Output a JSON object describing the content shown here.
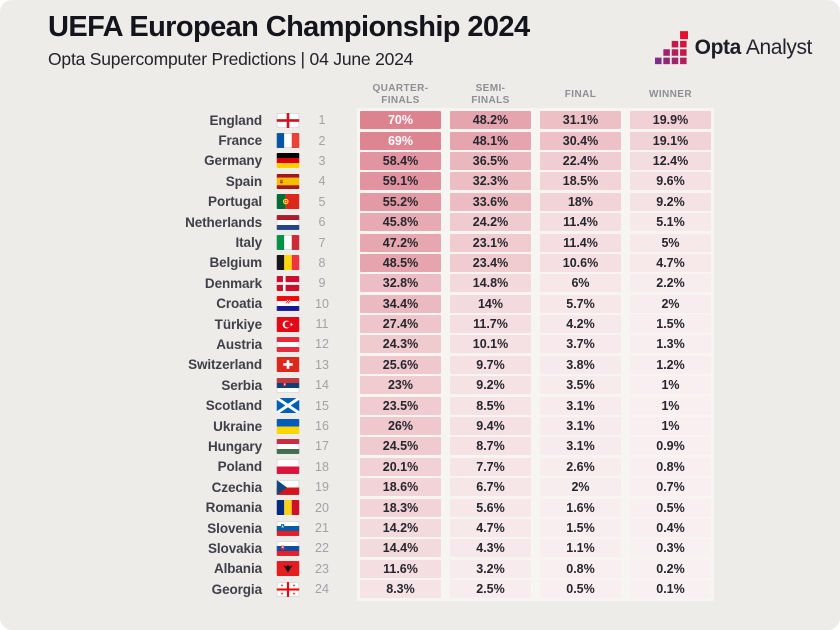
{
  "header": {
    "title": "UEFA European Championship 2024",
    "subtitle": "Opta Supercomputer Predictions | 04 June 2024",
    "logo": {
      "bold": "Opta",
      "light": "Analyst"
    }
  },
  "columns": [
    "QUARTER-\nFINALS",
    "SEMI-\nFINALS",
    "FINAL",
    "WINNER"
  ],
  "heat": {
    "min_color": "#f9f0f1",
    "max_color": "#dd8390",
    "max_value": 70,
    "white_text_threshold": 60,
    "dark_text": "#26262e",
    "light_text": "#ffffff"
  },
  "teams": [
    {
      "name": "England",
      "rank": 1,
      "flag": "england",
      "qf": "70%",
      "sf": "48.2%",
      "final": "31.1%",
      "winner": "19.9%"
    },
    {
      "name": "France",
      "rank": 2,
      "flag": "france",
      "qf": "69%",
      "sf": "48.1%",
      "final": "30.4%",
      "winner": "19.1%"
    },
    {
      "name": "Germany",
      "rank": 3,
      "flag": "germany",
      "qf": "58.4%",
      "sf": "36.5%",
      "final": "22.4%",
      "winner": "12.4%"
    },
    {
      "name": "Spain",
      "rank": 4,
      "flag": "spain",
      "qf": "59.1%",
      "sf": "32.3%",
      "final": "18.5%",
      "winner": "9.6%"
    },
    {
      "name": "Portugal",
      "rank": 5,
      "flag": "portugal",
      "qf": "55.2%",
      "sf": "33.6%",
      "final": "18%",
      "winner": "9.2%"
    },
    {
      "name": "Netherlands",
      "rank": 6,
      "flag": "netherlands",
      "qf": "45.8%",
      "sf": "24.2%",
      "final": "11.4%",
      "winner": "5.1%"
    },
    {
      "name": "Italy",
      "rank": 7,
      "flag": "italy",
      "qf": "47.2%",
      "sf": "23.1%",
      "final": "11.4%",
      "winner": "5%"
    },
    {
      "name": "Belgium",
      "rank": 8,
      "flag": "belgium",
      "qf": "48.5%",
      "sf": "23.4%",
      "final": "10.6%",
      "winner": "4.7%"
    },
    {
      "name": "Denmark",
      "rank": 9,
      "flag": "denmark",
      "qf": "32.8%",
      "sf": "14.8%",
      "final": "6%",
      "winner": "2.2%"
    },
    {
      "name": "Croatia",
      "rank": 10,
      "flag": "croatia",
      "qf": "34.4%",
      "sf": "14%",
      "final": "5.7%",
      "winner": "2%"
    },
    {
      "name": "Türkiye",
      "rank": 11,
      "flag": "turkiye",
      "qf": "27.4%",
      "sf": "11.7%",
      "final": "4.2%",
      "winner": "1.5%"
    },
    {
      "name": "Austria",
      "rank": 12,
      "flag": "austria",
      "qf": "24.3%",
      "sf": "10.1%",
      "final": "3.7%",
      "winner": "1.3%"
    },
    {
      "name": "Switzerland",
      "rank": 13,
      "flag": "switzerland",
      "qf": "25.6%",
      "sf": "9.7%",
      "final": "3.8%",
      "winner": "1.2%"
    },
    {
      "name": "Serbia",
      "rank": 14,
      "flag": "serbia",
      "qf": "23%",
      "sf": "9.2%",
      "final": "3.5%",
      "winner": "1%"
    },
    {
      "name": "Scotland",
      "rank": 15,
      "flag": "scotland",
      "qf": "23.5%",
      "sf": "8.5%",
      "final": "3.1%",
      "winner": "1%"
    },
    {
      "name": "Ukraine",
      "rank": 16,
      "flag": "ukraine",
      "qf": "26%",
      "sf": "9.4%",
      "final": "3.1%",
      "winner": "1%"
    },
    {
      "name": "Hungary",
      "rank": 17,
      "flag": "hungary",
      "qf": "24.5%",
      "sf": "8.7%",
      "final": "3.1%",
      "winner": "0.9%"
    },
    {
      "name": "Poland",
      "rank": 18,
      "flag": "poland",
      "qf": "20.1%",
      "sf": "7.7%",
      "final": "2.6%",
      "winner": "0.8%"
    },
    {
      "name": "Czechia",
      "rank": 19,
      "flag": "czechia",
      "qf": "18.6%",
      "sf": "6.7%",
      "final": "2%",
      "winner": "0.7%"
    },
    {
      "name": "Romania",
      "rank": 20,
      "flag": "romania",
      "qf": "18.3%",
      "sf": "5.6%",
      "final": "1.6%",
      "winner": "0.5%"
    },
    {
      "name": "Slovenia",
      "rank": 21,
      "flag": "slovenia",
      "qf": "14.2%",
      "sf": "4.7%",
      "final": "1.5%",
      "winner": "0.4%"
    },
    {
      "name": "Slovakia",
      "rank": 22,
      "flag": "slovakia",
      "qf": "14.4%",
      "sf": "4.3%",
      "final": "1.1%",
      "winner": "0.3%"
    },
    {
      "name": "Albania",
      "rank": 23,
      "flag": "albania",
      "qf": "11.6%",
      "sf": "3.2%",
      "final": "0.8%",
      "winner": "0.2%"
    },
    {
      "name": "Georgia",
      "rank": 24,
      "flag": "georgia",
      "qf": "8.3%",
      "sf": "2.5%",
      "final": "0.5%",
      "winner": "0.1%"
    }
  ],
  "flags": {
    "england": {
      "type": "cross",
      "bg": "#ffffff",
      "fg": "#ce1124",
      "border": true
    },
    "france": {
      "type": "v",
      "colors": [
        "#0055a4",
        "#ffffff",
        "#ef4135"
      ],
      "border": true
    },
    "germany": {
      "type": "h",
      "colors": [
        "#000000",
        "#dd0000",
        "#ffce00"
      ]
    },
    "spain": {
      "type": "h",
      "colors": [
        "#aa151b",
        "#f1bf00",
        "#aa151b"
      ],
      "weights": [
        1,
        2,
        1
      ],
      "emblem": "spain"
    },
    "portugal": {
      "type": "portugal",
      "colors": [
        "#046a38",
        "#da291c"
      ]
    },
    "netherlands": {
      "type": "h",
      "colors": [
        "#ae1c28",
        "#ffffff",
        "#21468b"
      ],
      "border": true
    },
    "italy": {
      "type": "v",
      "colors": [
        "#009246",
        "#ffffff",
        "#ce2b37"
      ],
      "border": true
    },
    "belgium": {
      "type": "v",
      "colors": [
        "#17161a",
        "#ffd90c",
        "#ef3340"
      ]
    },
    "denmark": {
      "type": "nordic",
      "bg": "#c8102e",
      "fg": "#ffffff"
    },
    "croatia": {
      "type": "h",
      "colors": [
        "#ff0000",
        "#ffffff",
        "#171796"
      ],
      "emblem": "croatia",
      "border": true
    },
    "turkiye": {
      "type": "crescent",
      "bg": "#e30a17",
      "fg": "#ffffff"
    },
    "austria": {
      "type": "h",
      "colors": [
        "#ed2939",
        "#ffffff",
        "#ed2939"
      ],
      "border": true
    },
    "switzerland": {
      "type": "swiss",
      "bg": "#da291c",
      "fg": "#ffffff"
    },
    "serbia": {
      "type": "h",
      "colors": [
        "#c6363c",
        "#0c4076",
        "#ffffff"
      ],
      "emblem": "serbia",
      "border": true
    },
    "scotland": {
      "type": "saltire",
      "bg": "#005eb8",
      "fg": "#ffffff"
    },
    "ukraine": {
      "type": "h",
      "colors": [
        "#005bbb",
        "#ffd500"
      ]
    },
    "hungary": {
      "type": "h",
      "colors": [
        "#cd2a3e",
        "#ffffff",
        "#436f4d"
      ],
      "border": true
    },
    "poland": {
      "type": "h",
      "colors": [
        "#ffffff",
        "#dc143c"
      ],
      "border": true
    },
    "czechia": {
      "type": "czech",
      "colors": [
        "#ffffff",
        "#d7141a",
        "#11457e"
      ],
      "border": true
    },
    "romania": {
      "type": "v",
      "colors": [
        "#002b7f",
        "#fcd116",
        "#ce1126"
      ]
    },
    "slovenia": {
      "type": "h",
      "colors": [
        "#ffffff",
        "#005da4",
        "#ed1c24"
      ],
      "emblem": "slovenia",
      "border": true
    },
    "slovakia": {
      "type": "h",
      "colors": [
        "#ffffff",
        "#0b4ea2",
        "#ee1c25"
      ],
      "emblem": "slovakia",
      "border": true
    },
    "albania": {
      "type": "eagle",
      "bg": "#e41e20",
      "fg": "#17161a"
    },
    "georgia": {
      "type": "georgia",
      "bg": "#ffffff",
      "fg": "#f40000",
      "border": true
    }
  },
  "chart_data": {
    "type": "table",
    "title": "UEFA European Championship 2024",
    "subtitle": "Opta Supercomputer Predictions | 04 June 2024",
    "columns": [
      "Quarter-Finals",
      "Semi-Finals",
      "Final",
      "Winner"
    ],
    "categories": [
      "England",
      "France",
      "Germany",
      "Spain",
      "Portugal",
      "Netherlands",
      "Italy",
      "Belgium",
      "Denmark",
      "Croatia",
      "Türkiye",
      "Austria",
      "Switzerland",
      "Serbia",
      "Scotland",
      "Ukraine",
      "Hungary",
      "Poland",
      "Czechia",
      "Romania",
      "Slovenia",
      "Slovakia",
      "Albania",
      "Georgia"
    ],
    "series": [
      {
        "name": "Quarter-Finals %",
        "values": [
          70,
          69,
          58.4,
          59.1,
          55.2,
          45.8,
          47.2,
          48.5,
          32.8,
          34.4,
          27.4,
          24.3,
          25.6,
          23,
          23.5,
          26,
          24.5,
          20.1,
          18.6,
          18.3,
          14.2,
          14.4,
          11.6,
          8.3
        ]
      },
      {
        "name": "Semi-Finals %",
        "values": [
          48.2,
          48.1,
          36.5,
          32.3,
          33.6,
          24.2,
          23.1,
          23.4,
          14.8,
          14,
          11.7,
          10.1,
          9.7,
          9.2,
          8.5,
          9.4,
          8.7,
          7.7,
          6.7,
          5.6,
          4.7,
          4.3,
          3.2,
          2.5
        ]
      },
      {
        "name": "Final %",
        "values": [
          31.1,
          30.4,
          22.4,
          18.5,
          18,
          11.4,
          11.4,
          10.6,
          6,
          5.7,
          4.2,
          3.7,
          3.8,
          3.5,
          3.1,
          3.1,
          3.1,
          2.6,
          2,
          1.6,
          1.5,
          1.1,
          0.8,
          0.5
        ]
      },
      {
        "name": "Winner %",
        "values": [
          19.9,
          19.1,
          12.4,
          9.6,
          9.2,
          5.1,
          5,
          4.7,
          2.2,
          2,
          1.5,
          1.3,
          1.2,
          1,
          1,
          1,
          0.9,
          0.8,
          0.7,
          0.5,
          0.4,
          0.3,
          0.2,
          0.1
        ]
      }
    ],
    "note": "heatmap-shaded table; shade intensity proportional to probability"
  }
}
